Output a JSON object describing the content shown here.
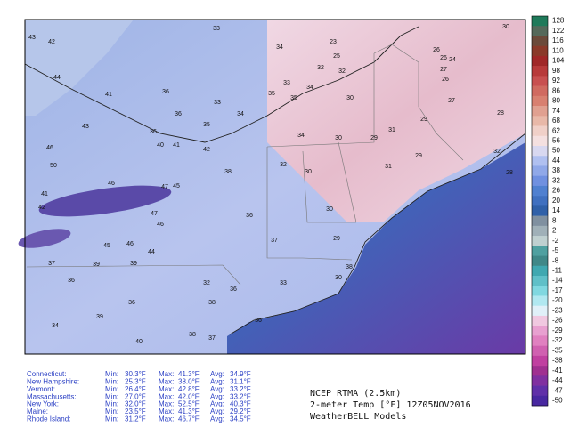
{
  "colorbar": {
    "ticks": [
      128,
      122,
      116,
      110,
      104,
      98,
      92,
      86,
      80,
      74,
      68,
      62,
      56,
      50,
      44,
      38,
      32,
      26,
      20,
      14,
      8,
      2,
      -2,
      -5,
      -8,
      -11,
      -14,
      -17,
      -20,
      -23,
      -26,
      -29,
      -32,
      -35,
      -38,
      -41,
      -44,
      -47,
      -50
    ],
    "colors": [
      "#1f7a5a",
      "#55695a",
      "#6b4a3a",
      "#8a3a2a",
      "#a02828",
      "#b83a3a",
      "#c85050",
      "#d06a60",
      "#d88070",
      "#e0a090",
      "#e8b8a8",
      "#f0d0c8",
      "#f4e0e0",
      "#d8d8f0",
      "#b0c0f0",
      "#90a8e8",
      "#7090e0",
      "#5080d0",
      "#4070c0",
      "#3060a8",
      "#8090a0",
      "#a0b0b8",
      "#c0d0d0",
      "#50a0a0",
      "#408888",
      "#40a8b0",
      "#60c0c8",
      "#80d8e0",
      "#b0e8f0",
      "#e0f0f8",
      "#f0c8e0",
      "#e8a0d0",
      "#e080c0",
      "#d060b0",
      "#c040a0",
      "#a03090",
      "#8030a0",
      "#6030a8",
      "#4828a0"
    ]
  },
  "map_labels": [
    "33",
    "43",
    "42",
    "34",
    "23",
    "26",
    "30",
    "25",
    "26",
    "24",
    "44",
    "32",
    "32",
    "27",
    "26",
    "33",
    "34",
    "36",
    "41",
    "33",
    "35",
    "35",
    "30",
    "27",
    "28",
    "43",
    "36",
    "34",
    "29",
    "36",
    "35",
    "31",
    "46",
    "40",
    "41",
    "42",
    "34",
    "30",
    "29",
    "50",
    "38",
    "32",
    "30",
    "31",
    "29",
    "41",
    "46",
    "47",
    "45",
    "32",
    "28",
    "42",
    "47",
    "46",
    "36",
    "30",
    "37",
    "29",
    "45",
    "46",
    "44",
    "37",
    "39",
    "39",
    "32",
    "36",
    "33",
    "30",
    "38",
    "36",
    "36",
    "38",
    "39",
    "34",
    "36",
    "40",
    "38",
    "37"
  ],
  "stats": {
    "rows": [
      [
        "Connecticut:",
        "Min:",
        "30.3°F",
        "Max:",
        "41.3°F",
        "Avg:",
        "34.9°F"
      ],
      [
        "New Hampshire:",
        "Min:",
        "25.3°F",
        "Max:",
        "38.0°F",
        "Avg:",
        "31.1°F"
      ],
      [
        "Vermont:",
        "Min:",
        "26.4°F",
        "Max:",
        "42.8°F",
        "Avg:",
        "33.2°F"
      ],
      [
        "Massachusetts:",
        "Min:",
        "27.0°F",
        "Max:",
        "42.0°F",
        "Avg:",
        "33.2°F"
      ],
      [
        "New York:",
        "Min:",
        "32.0°F",
        "Max:",
        "52.5°F",
        "Avg:",
        "40.3°F"
      ],
      [
        "Maine:",
        "Min:",
        "23.5°F",
        "Max:",
        "41.3°F",
        "Avg:",
        "29.2°F"
      ],
      [
        "Rhode Island:",
        "Min:",
        "31.2°F",
        "Max:",
        "46.7°F",
        "Avg:",
        "34.5°F"
      ]
    ]
  },
  "title_lines": [
    "NCEP RTMA (2.5km)",
    "2-meter Temp [°F] 12Z05NOV2016",
    "WeatherBELL Models"
  ]
}
